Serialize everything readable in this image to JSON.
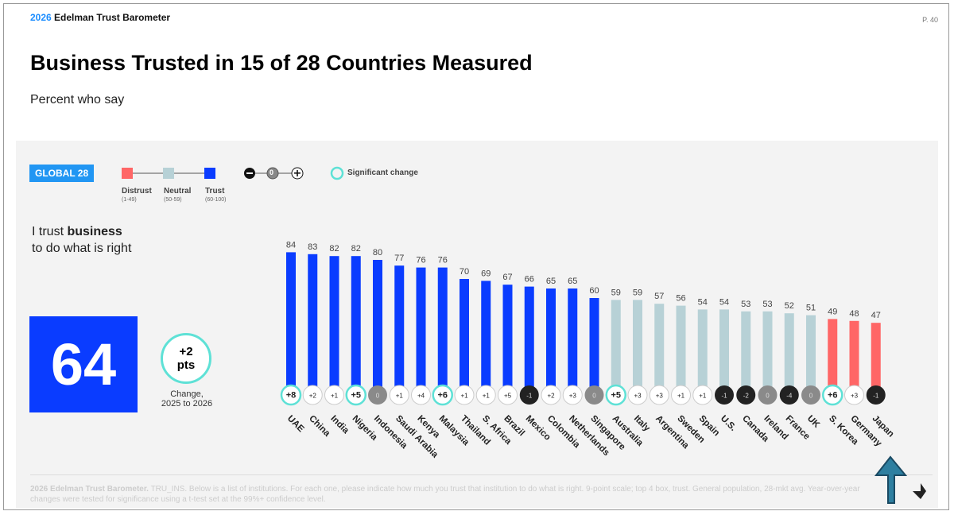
{
  "header": {
    "brand_year": "2026",
    "brand_name": "Edelman Trust Barometer",
    "page": "P. 40"
  },
  "title": "Business Trusted in 15 of 28 Countries Measured",
  "subtitle": "Percent who say",
  "badge": "GLOBAL 28",
  "legend": {
    "distrust": "Distrust",
    "distrust_range": "(1-49)",
    "neutral": "Neutral",
    "neutral_range": "(50-59)",
    "trust": "Trust",
    "trust_range": "(60-100)",
    "zero": "0",
    "significant": "Significant change"
  },
  "colors": {
    "distrust": "#ff6666",
    "neutral": "#b7d1d6",
    "trust": "#0a3cff",
    "significant": "#5ee1d6",
    "negative": "#222222",
    "zero": "#8a8a8a"
  },
  "question_pre": "I trust ",
  "question_bold": "business",
  "question_post": "to do what is right",
  "global_value": "64",
  "global_change_1": "+2",
  "global_change_2": "pts",
  "change_label_1": "Change,",
  "change_label_2": "2025 to 2026",
  "footer_bold": "2026 Edelman Trust Barometer.",
  "footer": " TRU_INS. Below is a list of institutions. For each one, please indicate how much you trust that institution to do what is right. 9-point scale; top 4 box, trust. General population, 28-mkt avg. Year-over-year changes were tested for significance using a t-test set at the 99%+ confidence level.",
  "chart_data": {
    "type": "bar",
    "categories": [
      "UAE",
      "China",
      "India",
      "Nigeria",
      "Indonesia",
      "Saudi Arabia",
      "Kenya",
      "Malaysia",
      "Thailand",
      "S. Africa",
      "Brazil",
      "Mexico",
      "Colombia",
      "Netherlands",
      "Singapore",
      "Australia",
      "Italy",
      "Argentina",
      "Sweden",
      "Spain",
      "U.S.",
      "Canada",
      "Ireland",
      "France",
      "UK",
      "S. Korea",
      "Germany",
      "Japan"
    ],
    "values": [
      84,
      83,
      82,
      82,
      80,
      77,
      76,
      76,
      70,
      69,
      67,
      66,
      65,
      65,
      60,
      59,
      59,
      57,
      56,
      54,
      54,
      53,
      53,
      52,
      51,
      49,
      48,
      47
    ],
    "changes": [
      "+8",
      "+2",
      "+1",
      "+5",
      "0",
      "+1",
      "+4",
      "+6",
      "+1",
      "+1",
      "+5",
      "-1",
      "+2",
      "+3",
      "0",
      "+5",
      "+3",
      "+3",
      "+1",
      "+1",
      "-1",
      "-2",
      "0",
      "-4",
      "0",
      "+6",
      "+3",
      "-1"
    ],
    "significant": [
      true,
      false,
      false,
      true,
      false,
      false,
      false,
      true,
      false,
      false,
      false,
      false,
      false,
      false,
      false,
      true,
      false,
      false,
      false,
      false,
      false,
      false,
      false,
      false,
      false,
      true,
      false,
      false
    ]
  }
}
